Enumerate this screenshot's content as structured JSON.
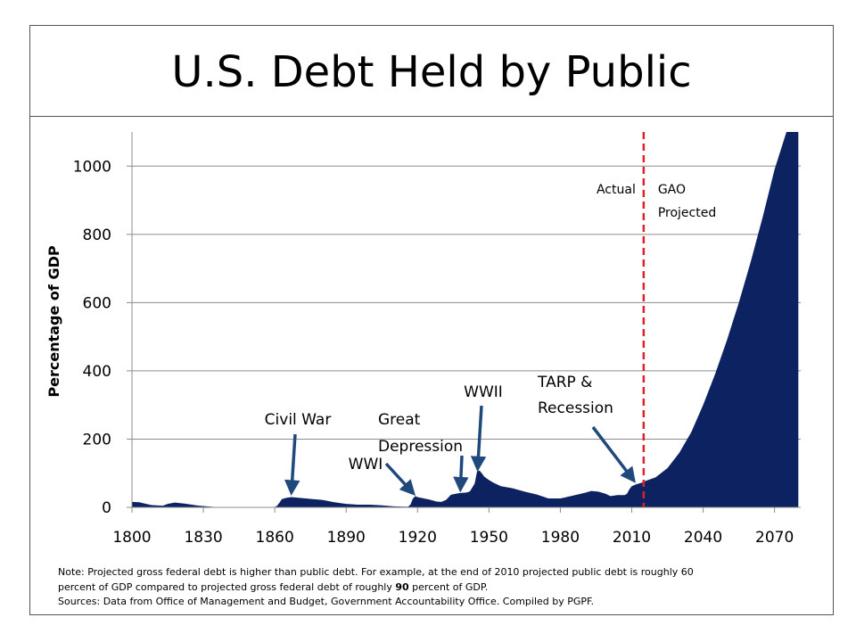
{
  "title": "U.S. Debt Held by Public",
  "note": {
    "line1": "Note: Projected gross federal debt is higher than public debt. For example, at the end of 2010 projected public debt is roughly 60",
    "line2_pre": "percent of GDP compared to projected gross federal debt of roughly ",
    "line2_bold": "90",
    "line2_post": " percent of GDP.",
    "line3": "Sources: Data from Office of Management and Budget, Government Accountability Office. Compiled by PGPF."
  },
  "chart_data": {
    "type": "area",
    "title": "U.S. Debt Held by Public",
    "xlabel": "",
    "ylabel": "Percentage of GDP",
    "xlim": [
      1800,
      2081
    ],
    "ylim": [
      0,
      1100
    ],
    "xticks": [
      1800,
      1830,
      1860,
      1890,
      1920,
      1950,
      1980,
      2010,
      2040,
      2070
    ],
    "yticks": [
      0,
      200,
      400,
      600,
      800,
      1000
    ],
    "grid": "horizontal",
    "fill_color": "#0d2260",
    "divider": {
      "x": 2015,
      "color": "#e0202a",
      "left_label": "Actual",
      "right_label_1": "GAO",
      "right_label_2": "Projected"
    },
    "x": [
      1800,
      1803,
      1806,
      1808,
      1810,
      1813,
      1815,
      1818,
      1822,
      1828,
      1835,
      1840,
      1845,
      1850,
      1855,
      1860,
      1861,
      1862,
      1863,
      1865,
      1867,
      1870,
      1873,
      1876,
      1880,
      1885,
      1890,
      1895,
      1900,
      1905,
      1910,
      1915,
      1916,
      1917,
      1918,
      1919,
      1920,
      1922,
      1925,
      1928,
      1930,
      1932,
      1934,
      1936,
      1938,
      1940,
      1941,
      1942,
      1943,
      1944,
      1945,
      1946,
      1947,
      1948,
      1950,
      1952,
      1955,
      1960,
      1965,
      1970,
      1975,
      1980,
      1985,
      1990,
      1993,
      1996,
      1999,
      2001,
      2004,
      2007,
      2008,
      2009,
      2010,
      2012,
      2014,
      2016,
      2020,
      2025,
      2030,
      2035,
      2040,
      2045,
      2050,
      2055,
      2060,
      2065,
      2070,
      2075,
      2080
    ],
    "y": [
      16,
      15,
      10,
      7,
      6,
      5,
      10,
      14,
      11,
      5,
      1,
      0,
      0,
      1,
      1,
      1,
      5,
      14,
      24,
      28,
      30,
      28,
      26,
      24,
      22,
      15,
      10,
      8,
      8,
      6,
      3,
      2,
      2,
      8,
      25,
      33,
      30,
      27,
      23,
      17,
      16,
      22,
      37,
      40,
      42,
      43,
      44,
      47,
      58,
      70,
      105,
      108,
      100,
      90,
      80,
      72,
      62,
      56,
      46,
      38,
      26,
      26,
      34,
      42,
      48,
      46,
      40,
      33,
      36,
      36,
      40,
      53,
      62,
      68,
      72,
      78,
      88,
      115,
      160,
      220,
      300,
      390,
      490,
      600,
      720,
      850,
      990,
      1100,
      1100
    ],
    "annotations": [
      {
        "label": "Civil War",
        "x": 1867,
        "y": 33
      },
      {
        "label": "WWI",
        "x": 1919,
        "y": 33
      },
      {
        "label_1": "Great",
        "label_2": "Depression",
        "x": 1938,
        "y": 42
      },
      {
        "label": "WWII",
        "x": 1946,
        "y": 108
      },
      {
        "label_1": "TARP &",
        "label_2": "Recession",
        "x": 2012,
        "y": 68
      }
    ]
  }
}
